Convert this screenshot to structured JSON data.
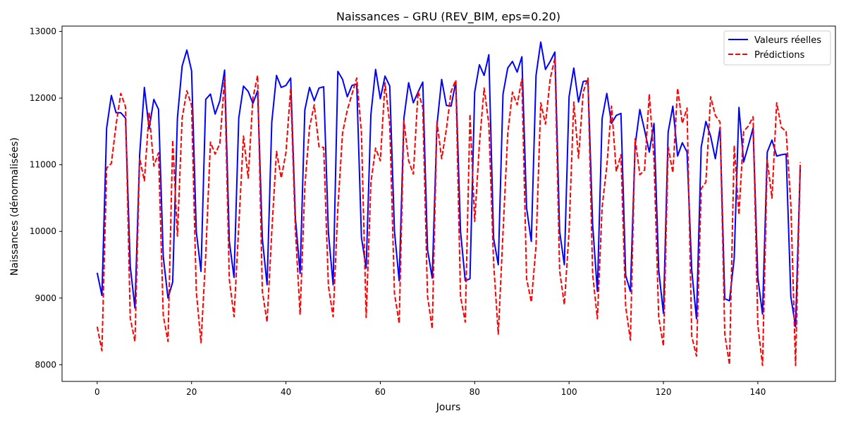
{
  "chart_data": {
    "type": "line",
    "title": "Naissances – GRU (REV_BIM, eps=0.20)",
    "xlabel": "Jours",
    "ylabel": "Naissances (dénormalisées)",
    "xlim": [
      -7.45,
      156.45
    ],
    "ylim": [
      7750,
      13080
    ],
    "xticks": [
      0,
      20,
      40,
      60,
      80,
      100,
      120,
      140
    ],
    "yticks": [
      8000,
      9000,
      10000,
      11000,
      12000,
      13000
    ],
    "grid": false,
    "legend_position": "top-right",
    "series": [
      {
        "name": "Valeurs réelles",
        "color": "#0000ff",
        "style": "solid",
        "x": [
          0,
          1,
          2,
          3,
          4,
          5,
          6,
          7,
          8,
          9,
          10,
          11,
          12,
          13,
          14,
          15,
          16,
          17,
          18,
          19,
          20,
          21,
          22,
          23,
          24,
          25,
          26,
          27,
          28,
          29,
          30,
          31,
          32,
          33,
          34,
          35,
          36,
          37,
          38,
          39,
          40,
          41,
          42,
          43,
          44,
          45,
          46,
          47,
          48,
          49,
          50,
          51,
          52,
          53,
          54,
          55,
          56,
          57,
          58,
          59,
          60,
          61,
          62,
          63,
          64,
          65,
          66,
          67,
          68,
          69,
          70,
          71,
          72,
          73,
          74,
          75,
          76,
          77,
          78,
          79,
          80,
          81,
          82,
          83,
          84,
          85,
          86,
          87,
          88,
          89,
          90,
          91,
          92,
          93,
          94,
          95,
          96,
          97,
          98,
          99,
          100,
          101,
          102,
          103,
          104,
          105,
          106,
          107,
          108,
          109,
          110,
          111,
          112,
          113,
          114,
          115,
          116,
          117,
          118,
          119,
          120,
          121,
          122,
          123,
          124,
          125,
          126,
          127,
          128,
          129,
          130,
          131,
          132,
          133,
          134,
          135,
          136,
          137,
          138,
          139,
          140,
          141,
          142,
          143,
          144,
          145,
          146,
          147,
          148,
          149
        ],
        "values": [
          9380,
          9040,
          11550,
          12040,
          11780,
          11780,
          11700,
          9480,
          8850,
          11150,
          12160,
          11540,
          11980,
          11830,
          9620,
          9000,
          9240,
          11700,
          12480,
          12720,
          12410,
          10000,
          9400,
          11980,
          12060,
          11760,
          11960,
          12420,
          9850,
          9310,
          11700,
          12180,
          12100,
          11920,
          12110,
          9890,
          9200,
          11640,
          12340,
          12160,
          12190,
          12300,
          10200,
          9370,
          11820,
          12160,
          11960,
          12150,
          12170,
          9980,
          9200,
          12400,
          12280,
          12020,
          12190,
          12210,
          9910,
          9450,
          11750,
          12430,
          11990,
          12330,
          12180,
          10000,
          9260,
          11700,
          12230,
          11930,
          12090,
          12240,
          9730,
          9300,
          11590,
          12280,
          11890,
          11880,
          12240,
          10000,
          9260,
          9290,
          12090,
          12500,
          12340,
          12650,
          9900,
          9500,
          12060,
          12450,
          12550,
          12390,
          12620,
          10350,
          9850,
          12340,
          12840,
          12430,
          12550,
          12690,
          10000,
          9500,
          12020,
          12450,
          11940,
          12250,
          12260,
          10100,
          9100,
          11690,
          12070,
          11620,
          11740,
          11770,
          9340,
          9100,
          11290,
          11830,
          11520,
          11190,
          11620,
          9420,
          8770,
          11490,
          11880,
          11130,
          11330,
          11190,
          9420,
          8690,
          11260,
          11650,
          11430,
          11090,
          11560,
          8990,
          8960,
          9600,
          11860,
          11040,
          11290,
          11550,
          9310,
          8760,
          11190,
          11370,
          11130,
          11150,
          11160,
          9020,
          8570,
          10980
        ]
      },
      {
        "name": "Prédictions",
        "color": "#ff0000",
        "style": "dashed",
        "x": [
          0,
          1,
          2,
          3,
          4,
          5,
          6,
          7,
          8,
          9,
          10,
          11,
          12,
          13,
          14,
          15,
          16,
          17,
          18,
          19,
          20,
          21,
          22,
          23,
          24,
          25,
          26,
          27,
          28,
          29,
          30,
          31,
          32,
          33,
          34,
          35,
          36,
          37,
          38,
          39,
          40,
          41,
          42,
          43,
          44,
          45,
          46,
          47,
          48,
          49,
          50,
          51,
          52,
          53,
          54,
          55,
          56,
          57,
          58,
          59,
          60,
          61,
          62,
          63,
          64,
          65,
          66,
          67,
          68,
          69,
          70,
          71,
          72,
          73,
          74,
          75,
          76,
          77,
          78,
          79,
          80,
          81,
          82,
          83,
          84,
          85,
          86,
          87,
          88,
          89,
          90,
          91,
          92,
          93,
          94,
          95,
          96,
          97,
          98,
          99,
          100,
          101,
          102,
          103,
          104,
          105,
          106,
          107,
          108,
          109,
          110,
          111,
          112,
          113,
          114,
          115,
          116,
          117,
          118,
          119,
          120,
          121,
          122,
          123,
          124,
          125,
          126,
          127,
          128,
          129,
          130,
          131,
          132,
          133,
          134,
          135,
          136,
          137,
          138,
          139,
          140,
          141,
          142,
          143,
          144,
          145,
          146,
          147,
          148,
          149
        ],
        "values": [
          8570,
          8210,
          10950,
          11020,
          11600,
          12070,
          11870,
          8700,
          8350,
          11100,
          10760,
          11790,
          10980,
          11180,
          8740,
          8350,
          11370,
          9930,
          11700,
          12110,
          11890,
          9100,
          8330,
          9640,
          11340,
          11160,
          11320,
          12310,
          9280,
          8720,
          10080,
          11430,
          10800,
          12000,
          12340,
          9100,
          8640,
          10000,
          11200,
          10800,
          11180,
          12140,
          10030,
          8750,
          10670,
          11560,
          11900,
          11270,
          11260,
          9180,
          8720,
          10350,
          11480,
          11820,
          12060,
          12300,
          11480,
          8710,
          10730,
          11250,
          11060,
          12230,
          11600,
          9070,
          8620,
          11660,
          11060,
          10860,
          12100,
          11860,
          9030,
          8540,
          11650,
          11090,
          11530,
          12100,
          12270,
          9020,
          8640,
          11760,
          10150,
          11310,
          12150,
          11610,
          9540,
          8460,
          9980,
          11460,
          12090,
          11900,
          12290,
          9290,
          8940,
          9780,
          11930,
          11610,
          12290,
          12600,
          9410,
          8900,
          10000,
          11940,
          11100,
          12090,
          12300,
          9360,
          8690,
          10360,
          10980,
          11880,
          10900,
          11150,
          8870,
          8370,
          11390,
          10850,
          10920,
          12060,
          11080,
          8710,
          8280,
          11270,
          10880,
          12150,
          11620,
          11850,
          8430,
          8130,
          10640,
          10740,
          12020,
          11740,
          11640,
          8460,
          8000,
          11290,
          10250,
          11500,
          11580,
          11720,
          8600,
          7990,
          11070,
          10500,
          11930,
          11560,
          11500,
          10400,
          7990,
          11040
        ]
      }
    ]
  }
}
